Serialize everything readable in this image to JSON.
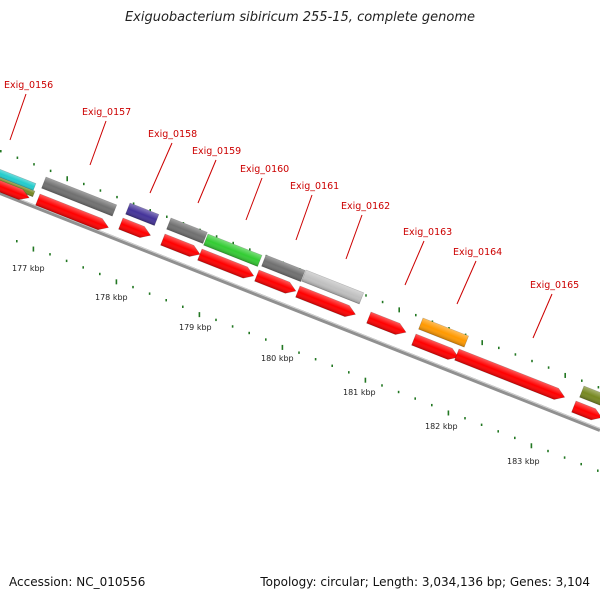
{
  "title": "Exiguobacterium sibiricum 255-15, complete genome",
  "footer": {
    "accession": "Accession: NC_010556",
    "summary": "Topology: circular; Length: 3,034,136 bp; Genes: 3,104"
  },
  "gene_labels": [
    "Exig_0156",
    "Exig_0157",
    "Exig_0158",
    "Exig_0159",
    "Exig_0160",
    "Exig_0161",
    "Exig_0162",
    "Exig_0163",
    "Exig_0164",
    "Exig_0165"
  ],
  "scale_labels": [
    "177 kbp",
    "178 kbp",
    "179 kbp",
    "180 kbp",
    "181 kbp",
    "182 kbp",
    "183 kbp"
  ],
  "colors": {
    "cds": "#ff0000",
    "gene_gray": "#707070",
    "gene_light_gray": "#c0c0c0",
    "gene_green": "#33cc33",
    "gene_purple": "#443399",
    "gene_orange": "#ff9900",
    "gene_cyan": "#22cccc",
    "gene_olive": "#778822",
    "label": "#cc0000",
    "tick": "#227722",
    "backbone": "#808080"
  }
}
